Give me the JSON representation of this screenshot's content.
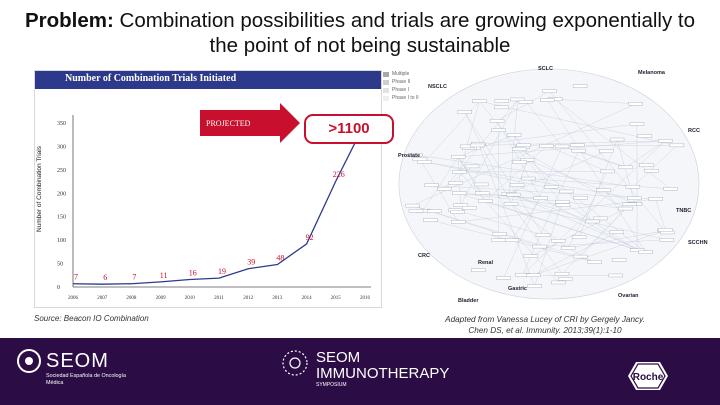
{
  "title": {
    "bold": "Problem:",
    "rest": " Combination possibilities and trials are growing exponentially to the point of not being sustainable"
  },
  "chart_panel": {
    "header": "Number of Combination Trials Initiated",
    "legend": [
      "Multiple",
      "Phase II",
      "Phase I",
      "Phase I to II"
    ],
    "legend_colors": [
      "#a8a8a8",
      "#cfcfcf",
      "#e2e2e2",
      "#efefef"
    ]
  },
  "callout": {
    "value": ">1100"
  },
  "source": "Source: Beacon IO Combination",
  "attribution": {
    "line1": "Adapted from Vanessa Lucey of CRI by Gergely Jancy.",
    "line2": "Chen DS, et al. Immunity. 2013;39(1):1-10"
  },
  "chart_data": {
    "type": "line",
    "title": "Number of Combination Trials Initiated",
    "xlabel": "",
    "ylabel": "Number of Combination Trials",
    "categories": [
      "2006",
      "2007",
      "2008",
      "2009",
      "2010",
      "2011",
      "2012",
      "2013",
      "2014",
      "2015",
      "2016"
    ],
    "values": [
      7,
      6,
      7,
      11,
      16,
      19,
      39,
      48,
      92,
      226,
      350
    ],
    "data_labels": [
      "7",
      "6",
      "7",
      "11",
      "16",
      "19",
      "39",
      "48",
      "92",
      "226",
      ""
    ],
    "y_ticks": [
      0,
      50,
      100,
      150,
      200,
      250,
      300,
      350
    ],
    "ylim": [
      0,
      350
    ],
    "annotation": "PROJECTED",
    "line_color": "#2d3a8c",
    "grid": false
  },
  "network": {
    "node_labels": [
      "SCLC",
      "NSCLC",
      "Melanoma",
      "RCC",
      "TNBC",
      "SCCHN",
      "Bladder",
      "Gastric",
      "Ovarian",
      "CRC",
      "Prostate",
      "Renal"
    ]
  },
  "footer": {
    "seom": "SEOM",
    "seom_sub": "Sociedad Española de Oncología Médica",
    "immuno_line1": "SEOM",
    "immuno_line2": "IMMUNOTHERAPY",
    "immuno_sub": "SYMPOSIUM",
    "roche": "Roche",
    "bg": "#2b0c44"
  }
}
